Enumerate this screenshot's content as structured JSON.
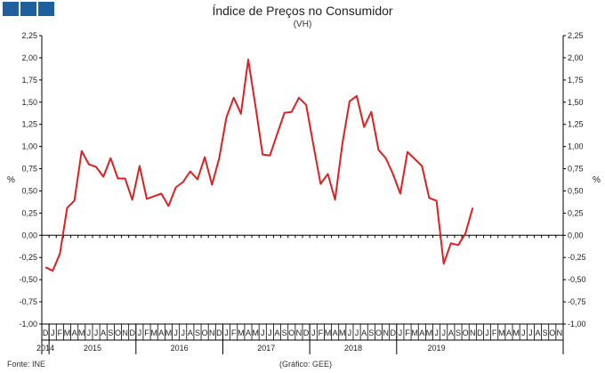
{
  "header": {
    "title": "Índice de Preços no Consumidor",
    "subtitle": "(VH)"
  },
  "brand": {
    "logo_color": "#1f5f9e"
  },
  "footer": {
    "source": "Fonte: INE",
    "graphic_credit": "(Gráfico: GEE)"
  },
  "chart_data": {
    "type": "line",
    "title": "Índice de Preços no Consumidor",
    "subtitle": "(VH)",
    "ylabel": "%",
    "ylim": [
      -1.0,
      2.25
    ],
    "y_ticks": [
      "2,25",
      "2,00",
      "1,75",
      "1,50",
      "1,25",
      "1,00",
      "0,75",
      "0,50",
      "0,25",
      "0,00",
      "-0,25",
      "-0,50",
      "-0,75",
      "-1,00"
    ],
    "y_tick_values": [
      2.25,
      2.0,
      1.75,
      1.5,
      1.25,
      1.0,
      0.75,
      0.5,
      0.25,
      0.0,
      -0.25,
      -0.5,
      -0.75,
      -1.0
    ],
    "grid": false,
    "line_color": "#e02020",
    "month_labels": [
      "D",
      "J",
      "F",
      "M",
      "A",
      "M",
      "J",
      "J",
      "A",
      "S",
      "O",
      "N",
      "D",
      "J",
      "F",
      "M",
      "A",
      "M",
      "J",
      "J",
      "A",
      "S",
      "O",
      "N",
      "D",
      "J",
      "F",
      "M",
      "A",
      "M",
      "J",
      "J",
      "A",
      "S",
      "O",
      "N",
      "D",
      "J",
      "F",
      "M",
      "A",
      "M",
      "J",
      "J",
      "A",
      "S",
      "O",
      "N",
      "D",
      "J",
      "F",
      "M",
      "A",
      "M",
      "J",
      "J",
      "A",
      "S",
      "O",
      "N",
      "D",
      "J",
      "F",
      "M",
      "A",
      "M",
      "J",
      "J",
      "A",
      "S",
      "O",
      "N"
    ],
    "years": [
      {
        "label": "2014",
        "start": 0,
        "end": 0
      },
      {
        "label": "2015",
        "start": 1,
        "end": 12
      },
      {
        "label": "2016",
        "start": 13,
        "end": 24
      },
      {
        "label": "2017",
        "start": 25,
        "end": 36
      },
      {
        "label": "2018",
        "start": 37,
        "end": 48
      },
      {
        "label": "2019",
        "start": 49,
        "end": 59
      }
    ],
    "series": [
      {
        "values": [
          -0.36,
          -0.4,
          -0.21,
          0.31,
          0.39,
          0.95,
          0.8,
          0.77,
          0.66,
          0.87,
          0.64,
          0.64,
          0.4,
          0.78,
          0.41,
          0.44,
          0.47,
          0.33,
          0.54,
          0.6,
          0.72,
          0.63,
          0.88,
          0.57,
          0.87,
          1.33,
          1.55,
          1.37,
          1.98,
          1.46,
          0.91,
          0.9,
          1.14,
          1.38,
          1.39,
          1.55,
          1.47,
          1.02,
          0.58,
          0.69,
          0.4,
          1.03,
          1.51,
          1.57,
          1.22,
          1.39,
          0.96,
          0.87,
          0.69,
          0.47,
          0.94,
          0.86,
          0.78,
          0.42,
          0.39,
          -0.32,
          -0.09,
          -0.11,
          0.02,
          0.31
        ]
      }
    ]
  }
}
